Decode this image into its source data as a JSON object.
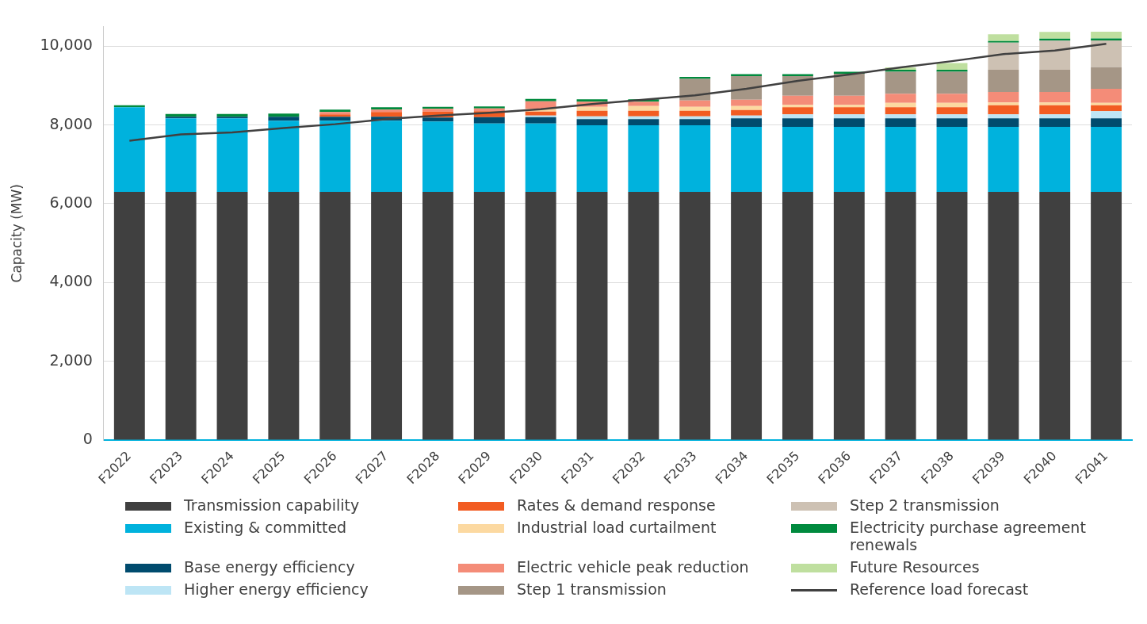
{
  "chart_data": {
    "type": "bar",
    "stacked": true,
    "ylabel": "Capacity (MW)",
    "categories": [
      "F2022",
      "F2023",
      "F2024",
      "F2025",
      "F2026",
      "F2027",
      "F2028",
      "F2029",
      "F2030",
      "F2031",
      "F2032",
      "F2033",
      "F2034",
      "F2035",
      "F2036",
      "F2037",
      "F2038",
      "F2039",
      "F2040",
      "F2041"
    ],
    "series": [
      {
        "name": "Transmission capability",
        "color": "#404040",
        "values": [
          6300,
          6300,
          6300,
          6300,
          6300,
          6300,
          6300,
          6300,
          6300,
          6300,
          6300,
          6300,
          6300,
          6300,
          6300,
          6300,
          6300,
          6300,
          6300,
          6300
        ]
      },
      {
        "name": "Existing & committed",
        "color": "#00b2dd",
        "values": [
          2150,
          1870,
          1870,
          1810,
          1810,
          1810,
          1790,
          1740,
          1740,
          1690,
          1690,
          1690,
          1650,
          1650,
          1650,
          1650,
          1650,
          1650,
          1650,
          1650
        ]
      },
      {
        "name": "Base energy efficiency",
        "color": "#004b6e",
        "values": [
          null,
          40,
          40,
          100,
          100,
          100,
          100,
          160,
          160,
          160,
          160,
          160,
          220,
          220,
          220,
          220,
          220,
          220,
          220,
          220
        ]
      },
      {
        "name": "Higher energy efficiency",
        "color": "#bde5f5",
        "values": [
          null,
          null,
          null,
          null,
          null,
          null,
          null,
          null,
          40,
          70,
          70,
          70,
          70,
          100,
          100,
          100,
          100,
          100,
          100,
          180
        ]
      },
      {
        "name": "Rates & demand response",
        "color": "#f25c22",
        "values": [
          null,
          null,
          null,
          null,
          60,
          120,
          150,
          150,
          100,
          140,
          140,
          140,
          140,
          180,
          180,
          180,
          180,
          230,
          230,
          150
        ]
      },
      {
        "name": "Industrial load curtailment",
        "color": "#fcd9a1",
        "values": [
          null,
          null,
          null,
          null,
          null,
          null,
          null,
          null,
          70,
          100,
          120,
          100,
          100,
          60,
          60,
          110,
          110,
          70,
          70,
          60
        ]
      },
      {
        "name": "Electric vehicle peak reduction",
        "color": "#f48c78",
        "values": [
          null,
          null,
          null,
          null,
          60,
          60,
          70,
          70,
          190,
          130,
          110,
          160,
          160,
          230,
          230,
          230,
          230,
          270,
          270,
          360
        ]
      },
      {
        "name": "Step 1 transmission",
        "color": "#a59686",
        "values": [
          null,
          null,
          null,
          null,
          null,
          null,
          null,
          null,
          null,
          null,
          null,
          550,
          600,
          500,
          560,
          560,
          560,
          560,
          560,
          545
        ]
      },
      {
        "name": "Step 2 transmission",
        "color": "#cdc1b3",
        "values": [
          null,
          null,
          null,
          null,
          null,
          null,
          null,
          null,
          null,
          null,
          null,
          null,
          null,
          null,
          null,
          null,
          null,
          690,
          740,
          680
        ]
      },
      {
        "name": "Electricity purchase agreement renewals",
        "color": "#008a3e",
        "values": [
          50,
          70,
          70,
          80,
          60,
          60,
          50,
          50,
          60,
          60,
          60,
          50,
          50,
          50,
          50,
          50,
          50,
          40,
          50,
          50
        ]
      },
      {
        "name": "Future Resources",
        "color": "#bfdf9f",
        "values": [
          null,
          null,
          null,
          null,
          null,
          null,
          null,
          null,
          null,
          null,
          null,
          null,
          null,
          null,
          null,
          60,
          170,
          170,
          170,
          170
        ]
      },
      {
        "name": "Reference load forecast",
        "type": "line",
        "color": "#404040",
        "values": [
          7600,
          7760,
          7810,
          7920,
          8020,
          8150,
          8240,
          8310,
          8400,
          8530,
          8640,
          8750,
          8920,
          9120,
          9280,
          9460,
          9620,
          9800,
          9890,
          10060
        ]
      }
    ],
    "ylim": [
      0,
      10500
    ],
    "yticks": [
      0,
      {
        "value": 2000,
        "label": "2,000"
      },
      {
        "value": 4000,
        "label": "4,000"
      },
      {
        "value": 6000,
        "label": "6,000"
      },
      {
        "value": 8000,
        "label": "8,000"
      },
      {
        "value": 10000,
        "label": "10,000"
      }
    ],
    "grid": "y",
    "legend": "bottom",
    "marker": "none"
  }
}
